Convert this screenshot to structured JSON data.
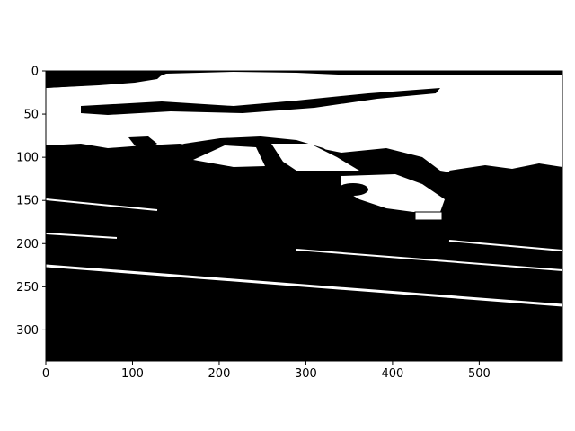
{
  "chart_data": {
    "type": "heatmap",
    "title": "",
    "xlabel": "",
    "ylabel": "",
    "colormap": "binary (black / white)",
    "image_width": 596,
    "image_height": 336,
    "xlim": [
      0,
      596
    ],
    "ylim": [
      336,
      0
    ],
    "y_axis_inverted": true,
    "grid": false,
    "legend": "none",
    "x_ticks": [
      0,
      100,
      200,
      300,
      400,
      500
    ],
    "y_ticks": [
      0,
      50,
      100,
      150,
      200,
      250,
      300
    ],
    "x_tick_labels": [
      "0",
      "100",
      "200",
      "300",
      "400",
      "500"
    ],
    "y_tick_labels": [
      "0",
      "50",
      "100",
      "150",
      "200",
      "250",
      "300"
    ],
    "colors": {
      "on": "#ffffff",
      "off": "#000000",
      "frame": "#000000"
    }
  }
}
